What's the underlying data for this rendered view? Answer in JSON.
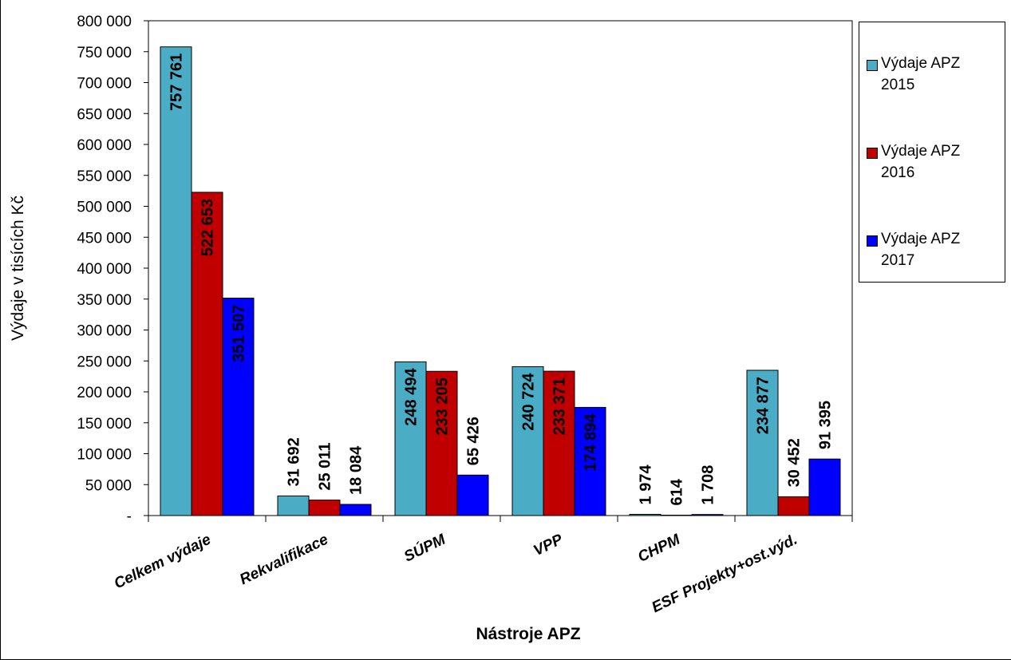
{
  "chart_data": {
    "type": "bar",
    "title": "",
    "xlabel": "Nástroje APZ",
    "ylabel": "Výdaje v tisících Kč",
    "ylim": [
      0,
      800000
    ],
    "yticks": [
      "-",
      "50 000",
      "100 000",
      "150 000",
      "200 000",
      "250 000",
      "300 000",
      "350 000",
      "400 000",
      "450 000",
      "500 000",
      "550 000",
      "600 000",
      "650 000",
      "700 000",
      "750 000",
      "800 000"
    ],
    "categories": [
      "Celkem výdaje",
      "Rekvalifikace",
      "SÚPM",
      "VPP",
      "CHPM",
      "ESF Projekty+ost.výd."
    ],
    "series": [
      {
        "name": "Výdaje APZ 2015",
        "color": "#4bacc6",
        "values": [
          757761,
          31692,
          248494,
          240724,
          1974,
          234877
        ],
        "labels": [
          "757 761",
          "31 692",
          "248 494",
          "240 724",
          "1 974",
          "234 877"
        ]
      },
      {
        "name": "Výdaje APZ 2016",
        "color": "#c00000",
        "values": [
          522653,
          25011,
          233205,
          233371,
          614,
          30452
        ],
        "labels": [
          "522 653",
          "25 011",
          "233 205",
          "233 371",
          "614",
          "30 452"
        ]
      },
      {
        "name": "Výdaje APZ 2017",
        "color": "#0000ff",
        "values": [
          351507,
          18084,
          65426,
          174894,
          1708,
          91395
        ],
        "labels": [
          "351 507",
          "18 084",
          "65 426",
          "174 894",
          "1 708",
          "91 395"
        ]
      }
    ],
    "grid": false,
    "legend_position": "right"
  },
  "legend": {
    "items": [
      {
        "line1": "Výdaje APZ",
        "line2": "2015"
      },
      {
        "line1": "Výdaje APZ",
        "line2": "2016"
      },
      {
        "line1": "Výdaje APZ",
        "line2": "2017"
      }
    ]
  }
}
